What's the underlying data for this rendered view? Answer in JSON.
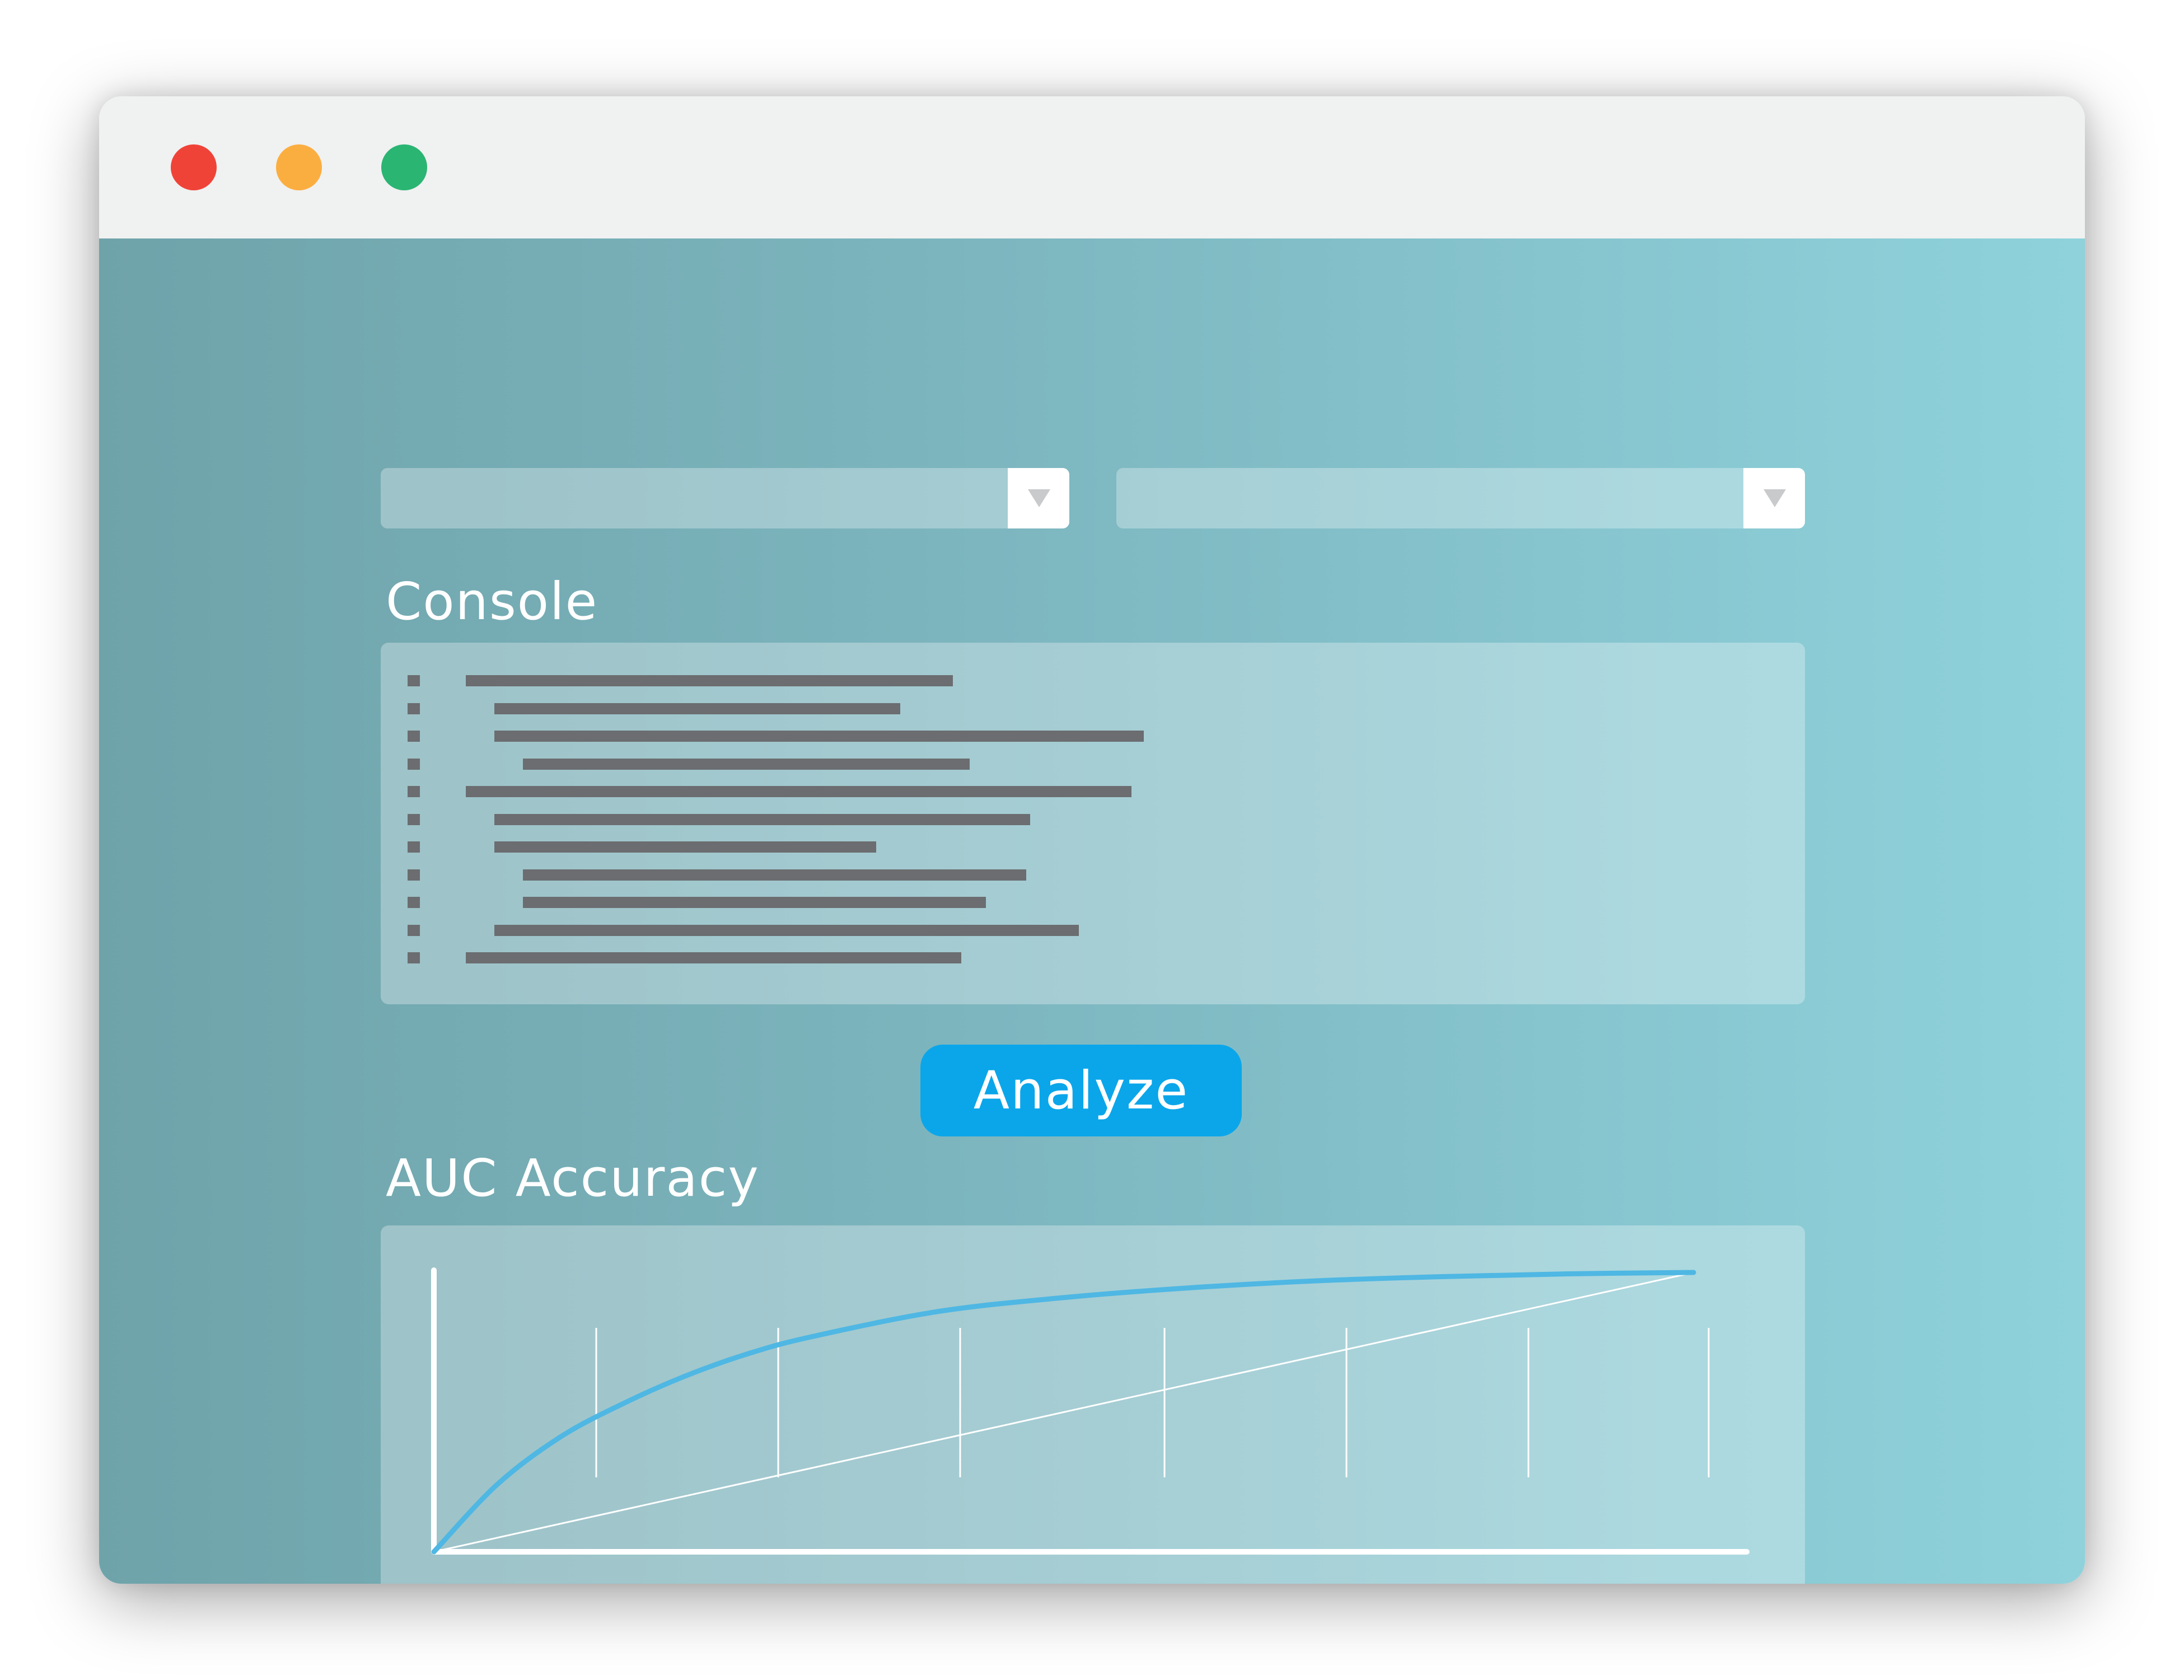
{
  "window": {
    "controls": [
      {
        "name": "close",
        "color": "#f04338"
      },
      {
        "name": "minimize",
        "color": "#fbae40"
      },
      {
        "name": "maximize",
        "color": "#2ab573"
      }
    ]
  },
  "dropdowns": [
    {
      "selected": "",
      "icon": "chevron-down-icon"
    },
    {
      "selected": "",
      "icon": "chevron-down-icon"
    }
  ],
  "console": {
    "title": "Console",
    "lines": [
      {
        "indent": 0,
        "length": 0.6
      },
      {
        "indent": 1,
        "length": 0.5
      },
      {
        "indent": 1,
        "length": 0.8
      },
      {
        "indent": 2,
        "length": 0.55
      },
      {
        "indent": 0,
        "length": 0.82
      },
      {
        "indent": 1,
        "length": 0.66
      },
      {
        "indent": 1,
        "length": 0.47
      },
      {
        "indent": 2,
        "length": 0.62
      },
      {
        "indent": 2,
        "length": 0.57
      },
      {
        "indent": 1,
        "length": 0.72
      },
      {
        "indent": 0,
        "length": 0.61
      }
    ]
  },
  "analyze_button": {
    "label": "Analyze",
    "color": "#0ba6ea"
  },
  "chart": {
    "title": "AUC Accuracy",
    "curve_color": "#4fb7e3",
    "baseline_color": "#ffffff"
  },
  "chart_data": {
    "type": "line",
    "title": "AUC Accuracy",
    "xlabel": "",
    "ylabel": "",
    "xlim": [
      0,
      1
    ],
    "ylim": [
      0,
      1
    ],
    "grid": "vertical",
    "series": [
      {
        "x": [
          0,
          0.05,
          0.1,
          0.15,
          0.2,
          0.25,
          0.3,
          0.4,
          0.5,
          0.6,
          0.7,
          0.8,
          0.9,
          1.0
        ],
        "y": [
          0,
          0.24,
          0.41,
          0.53,
          0.63,
          0.71,
          0.77,
          0.86,
          0.91,
          0.945,
          0.97,
          0.985,
          0.995,
          1.0
        ]
      },
      {
        "x": [
          0,
          1
        ],
        "y": [
          0,
          1
        ]
      }
    ]
  }
}
